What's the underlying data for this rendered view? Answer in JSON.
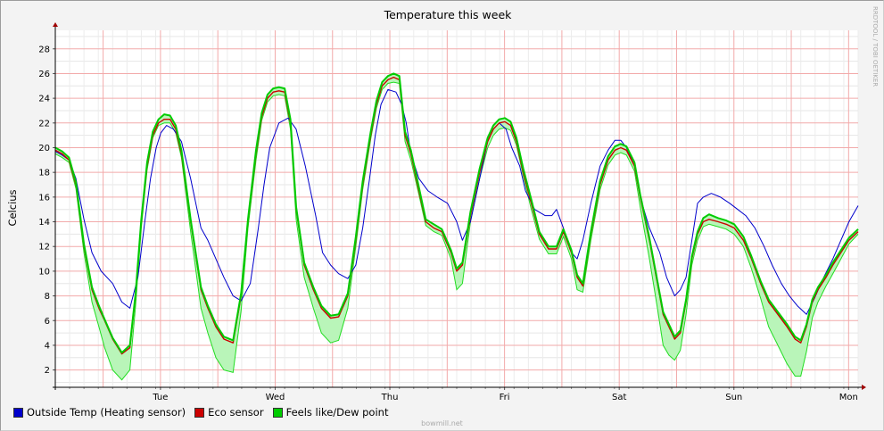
{
  "chart_data": {
    "type": "line",
    "title": "Temperature this week",
    "xlabel": "",
    "ylabel": "Celcius",
    "ylim": [
      0.6,
      29.5
    ],
    "yticks": [
      2,
      4,
      6,
      8,
      10,
      12,
      14,
      16,
      18,
      20,
      22,
      24,
      26,
      28
    ],
    "xlim": [
      0,
      7
    ],
    "xticks": [
      {
        "x": 0.917,
        "label": "Tue"
      },
      {
        "x": 1.917,
        "label": "Wed"
      },
      {
        "x": 2.917,
        "label": "Thu"
      },
      {
        "x": 3.917,
        "label": "Fri"
      },
      {
        "x": 4.917,
        "label": "Sat"
      },
      {
        "x": 5.917,
        "label": "Sun"
      },
      {
        "x": 6.917,
        "label": "Mon"
      }
    ],
    "grid": true,
    "legend_position": "bottom-left",
    "series": [
      {
        "name": "Outside Temp (Heating sensor)",
        "color": "#0000cc",
        "x": [
          0,
          0.06,
          0.12,
          0.18,
          0.25,
          0.32,
          0.4,
          0.5,
          0.58,
          0.65,
          0.72,
          0.78,
          0.83,
          0.88,
          0.92,
          0.97,
          1.03,
          1.1,
          1.18,
          1.27,
          1.33,
          1.4,
          1.47,
          1.55,
          1.62,
          1.7,
          1.77,
          1.82,
          1.87,
          1.95,
          2.03,
          2.1,
          2.18,
          2.27,
          2.33,
          2.4,
          2.47,
          2.55,
          2.62,
          2.68,
          2.74,
          2.79,
          2.84,
          2.9,
          2.97,
          3.02,
          3.06,
          3.1,
          3.17,
          3.25,
          3.33,
          3.42,
          3.5,
          3.55,
          3.62,
          3.7,
          3.77,
          3.82,
          3.87,
          3.93,
          3.98,
          4.05,
          4.1,
          4.18,
          4.27,
          4.33,
          4.37,
          4.43,
          4.5,
          4.55,
          4.6,
          4.67,
          4.75,
          4.82,
          4.88,
          4.93,
          4.98,
          5.05,
          5.1,
          5.18,
          5.27,
          5.33,
          5.4,
          5.45,
          5.5,
          5.55,
          5.6,
          5.65,
          5.72,
          5.8,
          5.88,
          5.95,
          6.02,
          6.1,
          6.18,
          6.25,
          6.33,
          6.4,
          6.47,
          6.55,
          6.62,
          6.7,
          6.78,
          6.85,
          6.92,
          7.0
        ],
        "values": [
          19.7,
          19.4,
          19.0,
          17.5,
          14.2,
          11.5,
          10.0,
          9.0,
          7.5,
          7.0,
          9.5,
          14.0,
          17.5,
          20.0,
          21.2,
          21.8,
          21.5,
          20.5,
          17.5,
          13.5,
          12.5,
          11.0,
          9.5,
          8.0,
          7.6,
          9.0,
          13.5,
          17.0,
          20.0,
          22.0,
          22.4,
          21.5,
          18.5,
          14.5,
          11.5,
          10.5,
          9.8,
          9.4,
          10.5,
          13.5,
          17.5,
          21.0,
          23.5,
          24.7,
          24.5,
          23.5,
          22.0,
          19.5,
          17.5,
          16.5,
          16.0,
          15.5,
          14.0,
          12.5,
          14.0,
          17.5,
          20.5,
          21.5,
          22.0,
          21.5,
          20.0,
          18.5,
          16.5,
          15.0,
          14.5,
          14.5,
          15.0,
          13.5,
          11.5,
          11.0,
          12.5,
          15.5,
          18.5,
          19.8,
          20.6,
          20.6,
          20.0,
          18.5,
          16.0,
          13.5,
          11.5,
          9.5,
          8.0,
          8.5,
          9.5,
          12.5,
          15.5,
          16.0,
          16.3,
          16.0,
          15.5,
          15.0,
          14.5,
          13.5,
          12.0,
          10.5,
          9.0,
          8.0,
          7.2,
          6.5,
          7.8,
          9.5,
          11.0,
          12.5,
          14.0,
          15.3
        ]
      },
      {
        "name": "Eco sensor",
        "color": "#cc0000",
        "x": [
          0,
          0.06,
          0.12,
          0.18,
          0.25,
          0.32,
          0.38,
          0.43,
          0.5,
          0.58,
          0.65,
          0.7,
          0.75,
          0.8,
          0.85,
          0.9,
          0.95,
          1.0,
          1.05,
          1.1,
          1.18,
          1.27,
          1.33,
          1.4,
          1.47,
          1.55,
          1.62,
          1.68,
          1.75,
          1.8,
          1.85,
          1.9,
          1.95,
          2.0,
          2.05,
          2.1,
          2.17,
          2.25,
          2.32,
          2.4,
          2.47,
          2.55,
          2.62,
          2.68,
          2.75,
          2.8,
          2.85,
          2.9,
          2.95,
          3.0,
          3.05,
          3.1,
          3.17,
          3.23,
          3.3,
          3.37,
          3.45,
          3.5,
          3.55,
          3.62,
          3.7,
          3.77,
          3.82,
          3.87,
          3.92,
          3.97,
          4.02,
          4.08,
          4.15,
          4.22,
          4.3,
          4.37,
          4.43,
          4.5,
          4.55,
          4.6,
          4.67,
          4.75,
          4.82,
          4.88,
          4.93,
          4.98,
          5.05,
          5.1,
          5.18,
          5.25,
          5.3,
          5.35,
          5.4,
          5.45,
          5.5,
          5.55,
          5.6,
          5.65,
          5.7,
          5.78,
          5.85,
          5.92,
          6.0,
          6.07,
          6.15,
          6.22,
          6.3,
          6.38,
          6.45,
          6.5,
          6.55,
          6.6,
          6.65,
          6.72,
          6.78,
          6.85,
          6.92,
          7.0
        ],
        "values": [
          19.8,
          19.5,
          19.0,
          17.0,
          12.0,
          8.5,
          7.0,
          6.0,
          4.5,
          3.3,
          3.8,
          8.0,
          14.0,
          18.5,
          21.0,
          22.0,
          22.3,
          22.3,
          21.5,
          19.5,
          14.0,
          8.5,
          7.0,
          5.5,
          4.5,
          4.2,
          8.0,
          14.0,
          19.5,
          22.5,
          24.0,
          24.5,
          24.6,
          24.5,
          22.0,
          15.0,
          10.5,
          8.5,
          7.0,
          6.2,
          6.3,
          8.0,
          12.5,
          17.0,
          21.0,
          23.5,
          25.0,
          25.5,
          25.7,
          25.5,
          21.0,
          19.5,
          16.5,
          14.0,
          13.5,
          13.2,
          11.5,
          10.0,
          10.5,
          14.5,
          18.0,
          20.5,
          21.5,
          22.0,
          22.1,
          21.8,
          20.5,
          18.0,
          15.5,
          13.0,
          11.8,
          11.8,
          13.2,
          11.5,
          9.5,
          8.8,
          13.0,
          17.0,
          19.0,
          19.8,
          20.0,
          19.8,
          18.5,
          16.0,
          12.5,
          9.0,
          6.5,
          5.5,
          4.5,
          5.0,
          7.5,
          11.0,
          13.0,
          14.0,
          14.2,
          14.0,
          13.8,
          13.5,
          12.5,
          11.0,
          9.0,
          7.5,
          6.5,
          5.5,
          4.5,
          4.2,
          5.5,
          7.5,
          8.5,
          9.5,
          10.5,
          11.5,
          12.5,
          13.2
        ]
      },
      {
        "name": "Feels like/Dew point",
        "color": "#00cc00",
        "x": [
          0,
          0.06,
          0.12,
          0.18,
          0.25,
          0.32,
          0.38,
          0.43,
          0.5,
          0.58,
          0.65,
          0.7,
          0.75,
          0.8,
          0.85,
          0.9,
          0.95,
          1.0,
          1.05,
          1.1,
          1.18,
          1.27,
          1.33,
          1.4,
          1.47,
          1.55,
          1.62,
          1.68,
          1.75,
          1.8,
          1.85,
          1.9,
          1.95,
          2.0,
          2.05,
          2.1,
          2.17,
          2.25,
          2.32,
          2.4,
          2.47,
          2.55,
          2.62,
          2.68,
          2.75,
          2.8,
          2.85,
          2.9,
          2.95,
          3.0,
          3.05,
          3.1,
          3.17,
          3.23,
          3.3,
          3.37,
          3.45,
          3.5,
          3.55,
          3.62,
          3.7,
          3.77,
          3.82,
          3.87,
          3.92,
          3.97,
          4.02,
          4.08,
          4.15,
          4.22,
          4.3,
          4.37,
          4.43,
          4.5,
          4.55,
          4.6,
          4.67,
          4.75,
          4.82,
          4.88,
          4.93,
          4.98,
          5.05,
          5.1,
          5.18,
          5.25,
          5.3,
          5.35,
          5.4,
          5.45,
          5.5,
          5.55,
          5.6,
          5.65,
          5.7,
          5.78,
          5.85,
          5.92,
          6.0,
          6.07,
          6.15,
          6.22,
          6.3,
          6.38,
          6.45,
          6.5,
          6.55,
          6.6,
          6.65,
          6.72,
          6.78,
          6.85,
          6.92,
          7.0
        ],
        "values": [
          20.0,
          19.7,
          19.2,
          17.2,
          12.2,
          8.7,
          7.2,
          6.1,
          4.6,
          3.4,
          4.0,
          8.2,
          14.2,
          18.8,
          21.3,
          22.3,
          22.7,
          22.6,
          21.8,
          19.8,
          14.2,
          8.7,
          7.2,
          5.7,
          4.7,
          4.4,
          8.2,
          14.2,
          19.8,
          22.8,
          24.3,
          24.8,
          24.9,
          24.8,
          22.3,
          15.2,
          10.7,
          8.7,
          7.2,
          6.4,
          6.5,
          8.2,
          12.8,
          17.3,
          21.3,
          23.8,
          25.3,
          25.8,
          26.0,
          25.8,
          21.3,
          19.8,
          16.8,
          14.2,
          13.8,
          13.4,
          11.7,
          10.2,
          10.7,
          14.8,
          18.3,
          20.8,
          21.8,
          22.3,
          22.4,
          22.1,
          20.8,
          18.3,
          15.8,
          13.2,
          12.0,
          12.0,
          13.4,
          11.7,
          9.7,
          9.0,
          13.2,
          17.3,
          19.3,
          20.1,
          20.3,
          20.1,
          18.8,
          16.2,
          12.7,
          9.2,
          6.7,
          5.7,
          4.7,
          5.2,
          7.7,
          11.2,
          13.2,
          14.3,
          14.6,
          14.3,
          14.1,
          13.8,
          12.8,
          11.2,
          9.2,
          7.7,
          6.7,
          5.7,
          4.7,
          4.4,
          5.7,
          7.7,
          8.7,
          9.7,
          10.7,
          11.7,
          12.7,
          13.4
        ]
      }
    ],
    "dew_band": {
      "x": [
        0,
        0.06,
        0.12,
        0.18,
        0.25,
        0.32,
        0.38,
        0.43,
        0.5,
        0.58,
        0.65,
        0.7,
        0.75,
        0.8,
        0.85,
        0.9,
        0.95,
        1.0,
        1.05,
        1.1,
        1.18,
        1.27,
        1.33,
        1.4,
        1.47,
        1.55,
        1.62,
        1.68,
        1.75,
        1.8,
        1.85,
        1.9,
        1.95,
        2.0,
        2.05,
        2.1,
        2.17,
        2.25,
        2.32,
        2.4,
        2.47,
        2.55,
        2.62,
        2.68,
        2.75,
        2.8,
        2.85,
        2.9,
        2.95,
        3.0,
        3.05,
        3.1,
        3.17,
        3.23,
        3.3,
        3.37,
        3.45,
        3.5,
        3.55,
        3.62,
        3.7,
        3.77,
        3.82,
        3.87,
        3.92,
        3.97,
        4.02,
        4.08,
        4.15,
        4.22,
        4.3,
        4.37,
        4.43,
        4.5,
        4.55,
        4.6,
        4.67,
        4.75,
        4.82,
        4.88,
        4.93,
        4.98,
        5.05,
        5.1,
        5.18,
        5.25,
        5.3,
        5.35,
        5.4,
        5.45,
        5.5,
        5.55,
        5.6,
        5.65,
        5.7,
        5.78,
        5.85,
        5.92,
        6.0,
        6.07,
        6.15,
        6.22,
        6.3,
        6.38,
        6.45,
        6.5,
        6.55,
        6.6,
        6.65,
        6.72,
        6.78,
        6.85,
        6.92,
        7.0
      ],
      "values": [
        19.5,
        19.2,
        18.8,
        16.7,
        11.5,
        7.5,
        5.5,
        3.8,
        2.0,
        1.2,
        2.0,
        7.2,
        13.5,
        18.2,
        20.8,
        21.8,
        22.0,
        22.0,
        21.2,
        19.2,
        13.2,
        7.0,
        5.0,
        3.0,
        2.0,
        1.8,
        6.8,
        13.5,
        19.0,
        22.2,
        23.7,
        24.2,
        24.3,
        24.2,
        21.5,
        14.2,
        9.5,
        7.0,
        5.0,
        4.2,
        4.4,
        7.0,
        12.0,
        16.6,
        20.7,
        23.2,
        24.7,
        25.2,
        25.3,
        25.2,
        20.5,
        19.0,
        16.2,
        13.7,
        13.2,
        12.9,
        11.0,
        8.5,
        9.0,
        14.0,
        17.5,
        20.0,
        21.0,
        21.5,
        21.6,
        21.4,
        20.2,
        17.7,
        15.0,
        12.6,
        11.4,
        11.4,
        12.8,
        11.0,
        8.5,
        8.3,
        12.5,
        16.6,
        18.6,
        19.4,
        19.6,
        19.4,
        18.1,
        15.2,
        11.0,
        7.0,
        4.0,
        3.2,
        2.8,
        3.6,
        6.5,
        10.5,
        12.5,
        13.6,
        13.8,
        13.6,
        13.4,
        13.0,
        12.0,
        10.2,
        7.8,
        5.5,
        4.0,
        2.5,
        1.5,
        1.5,
        3.5,
        6.2,
        7.5,
        8.8,
        9.8,
        11.0,
        12.2,
        13.0
      ]
    }
  },
  "legend": {
    "items": [
      {
        "label": "Outside Temp (Heating sensor)",
        "color": "#0000cc"
      },
      {
        "label": "Eco sensor",
        "color": "#cc0000"
      },
      {
        "label": "Feels like/Dew point",
        "color": "#00cc00"
      }
    ]
  },
  "side_text": "RRDTOOL / TOBI OETIKER",
  "bottom_text": "bowmill.net"
}
